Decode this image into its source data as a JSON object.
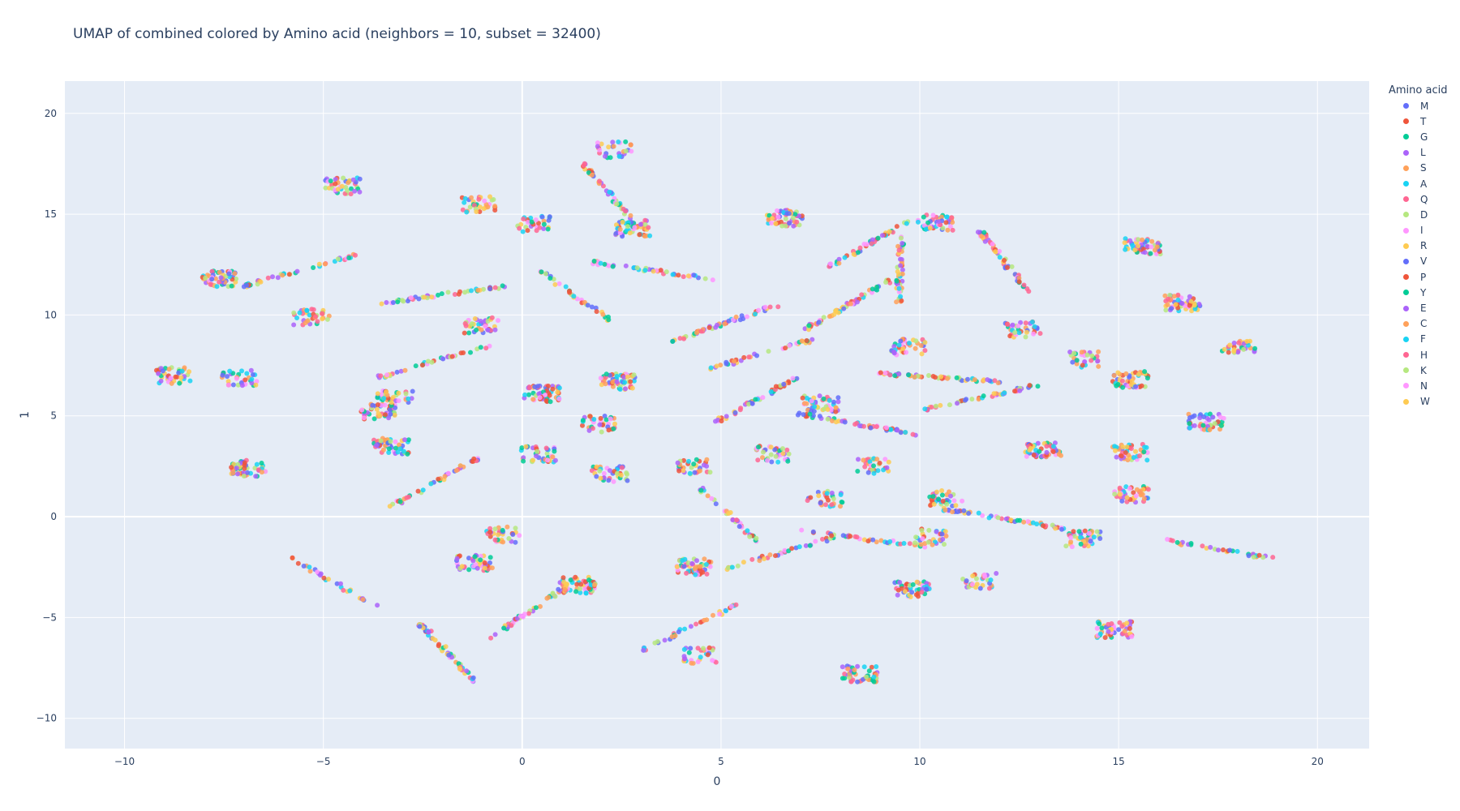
{
  "chart_data": {
    "type": "scatter",
    "title": "UMAP of combined colored by Amino acid (neighbors = 10, subset = 32400)",
    "xlabel": "0",
    "ylabel": "1",
    "xlim": [
      -11.5,
      21.3
    ],
    "ylim": [
      -11.5,
      21.6
    ],
    "x_ticks": [
      -10,
      -5,
      0,
      5,
      10,
      15,
      20
    ],
    "y_ticks": [
      -10,
      -5,
      0,
      5,
      10,
      15,
      20
    ],
    "grid": true,
    "legend": {
      "title": "Amino acid",
      "placement": "right"
    },
    "series": [
      {
        "name": "M",
        "color": "#636efa"
      },
      {
        "name": "T",
        "color": "#EF553B"
      },
      {
        "name": "G",
        "color": "#00cc96"
      },
      {
        "name": "L",
        "color": "#ab63fa"
      },
      {
        "name": "S",
        "color": "#FFA15A"
      },
      {
        "name": "A",
        "color": "#19d3f3"
      },
      {
        "name": "Q",
        "color": "#FF6692"
      },
      {
        "name": "D",
        "color": "#B6E880"
      },
      {
        "name": "I",
        "color": "#FF97FF"
      },
      {
        "name": "R",
        "color": "#FECB52"
      },
      {
        "name": "V",
        "color": "#636efa"
      },
      {
        "name": "P",
        "color": "#EF553B"
      },
      {
        "name": "Y",
        "color": "#00cc96"
      },
      {
        "name": "E",
        "color": "#ab63fa"
      },
      {
        "name": "C",
        "color": "#FFA15A"
      },
      {
        "name": "F",
        "color": "#19d3f3"
      },
      {
        "name": "H",
        "color": "#FF6692"
      },
      {
        "name": "K",
        "color": "#B6E880"
      },
      {
        "name": "N",
        "color": "#FF97FF"
      },
      {
        "name": "W",
        "color": "#FECB52"
      }
    ],
    "clusters": [
      [
        2.2,
        16.0
      ],
      [
        0.3,
        14.5
      ],
      [
        2.3,
        18.2
      ],
      [
        -1.1,
        15.5
      ],
      [
        -4.5,
        16.4
      ],
      [
        1.3,
        11.0
      ],
      [
        -1.0,
        9.5
      ],
      [
        -2.2,
        7.7
      ],
      [
        -3.6,
        5.2
      ],
      [
        -7.1,
        6.9
      ],
      [
        -8.8,
        7.0
      ],
      [
        -5.3,
        9.9
      ],
      [
        -5.6,
        12.2
      ],
      [
        -7.6,
        11.8
      ],
      [
        -3.3,
        3.5
      ],
      [
        -2.2,
        1.7
      ],
      [
        0.4,
        3.1
      ],
      [
        2.2,
        2.1
      ],
      [
        1.9,
        4.6
      ],
      [
        2.4,
        6.7
      ],
      [
        0.5,
        6.1
      ],
      [
        -0.5,
        -0.9
      ],
      [
        -1.2,
        -2.3
      ],
      [
        0.2,
        -4.7
      ],
      [
        1.4,
        -3.4
      ],
      [
        4.3,
        -2.5
      ],
      [
        5.2,
        0.1
      ],
      [
        4.3,
        2.5
      ],
      [
        4.2,
        -5.5
      ],
      [
        4.5,
        -6.9
      ],
      [
        6.1,
        8.1
      ],
      [
        5.1,
        9.6
      ],
      [
        5.9,
        5.8
      ],
      [
        6.3,
        3.1
      ],
      [
        6.5,
        -1.8
      ],
      [
        7.6,
        0.9
      ],
      [
        7.5,
        5.6
      ],
      [
        8.4,
        4.6
      ],
      [
        8.2,
        10.5
      ],
      [
        8.7,
        13.5
      ],
      [
        8.8,
        2.5
      ],
      [
        8.6,
        -1.1
      ],
      [
        8.5,
        -7.8
      ],
      [
        9.8,
        -3.6
      ],
      [
        10.5,
        6.9
      ],
      [
        10.7,
        0.9
      ],
      [
        10.3,
        -1.0
      ],
      [
        11.5,
        5.9
      ],
      [
        11.5,
        -3.2
      ],
      [
        12.1,
        -0.1
      ],
      [
        12.6,
        9.3
      ],
      [
        14.2,
        7.8
      ],
      [
        14.1,
        -1.1
      ],
      [
        15.3,
        3.2
      ],
      [
        15.3,
        1.1
      ],
      [
        15.3,
        6.8
      ],
      [
        15.6,
        13.4
      ],
      [
        17.4,
        -1.6
      ],
      [
        14.9,
        -5.6
      ],
      [
        17.2,
        4.7
      ],
      [
        9.7,
        8.4
      ],
      [
        -3.2,
        5.9
      ],
      [
        -4.7,
        -3.3
      ],
      [
        6.6,
        14.8
      ],
      [
        2.8,
        14.3
      ],
      [
        -2.0,
        11.0
      ],
      [
        3.3,
        12.2
      ],
      [
        13.1,
        3.3
      ],
      [
        16.6,
        10.6
      ],
      [
        -6.9,
        2.4
      ],
      [
        18.0,
        8.5
      ],
      [
        12.1,
        12.7
      ],
      [
        9.5,
        12.2
      ],
      [
        10.4,
        14.6
      ],
      [
        -1.9,
        -6.7
      ]
    ]
  }
}
